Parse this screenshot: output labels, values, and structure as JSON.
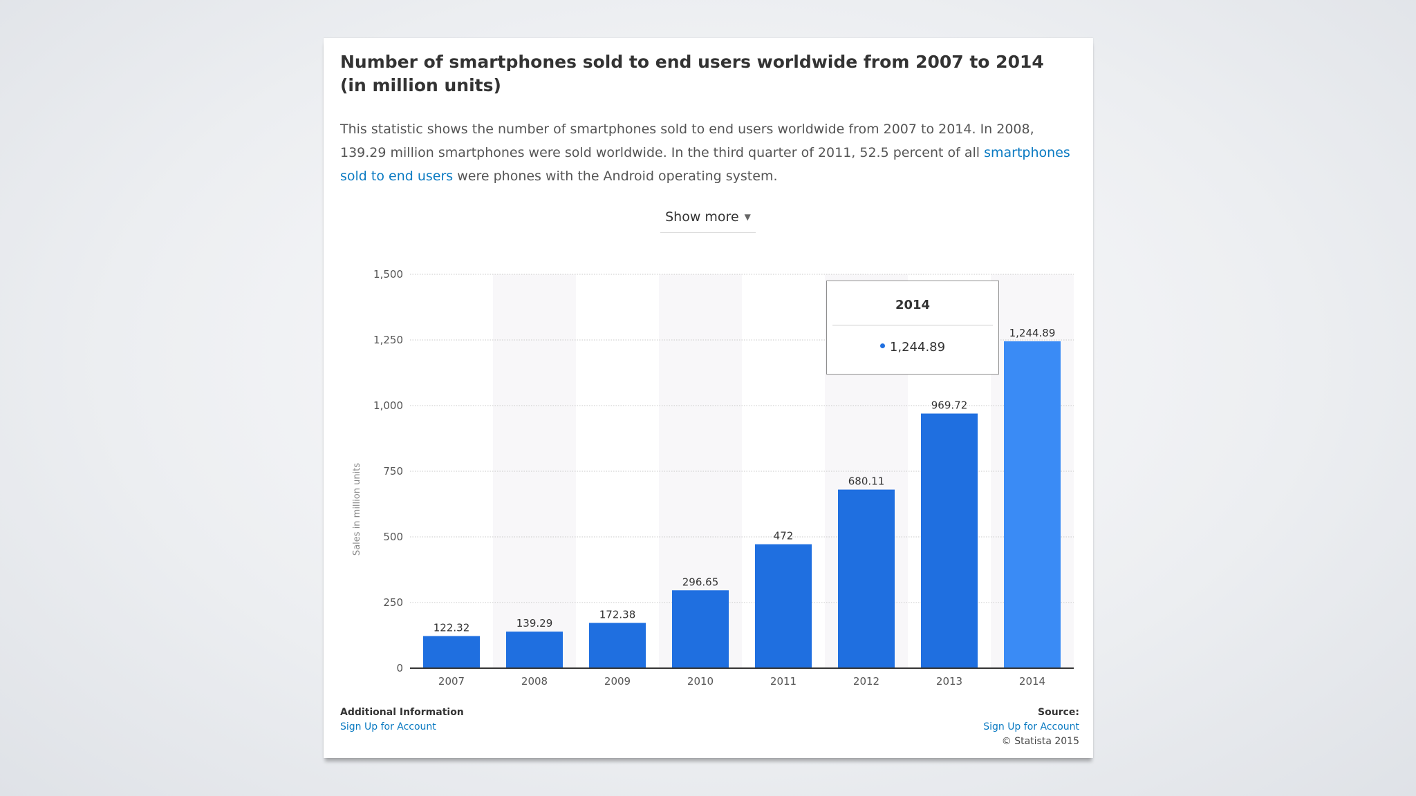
{
  "title": "Number of smartphones sold to end users worldwide from 2007 to 2014 (in million units)",
  "description": {
    "before_link": "This statistic shows the number of smartphones sold to end users worldwide from 2007 to 2014. In 2008, 139.29 million smartphones were sold worldwide. In the third quarter of 2011, 52.5 percent of all ",
    "link": "smartphones sold to end users",
    "after_link": " were phones with the Android operating system."
  },
  "show_more": {
    "label": "Show more",
    "icon": "caret-down-icon"
  },
  "chart_data": {
    "type": "bar",
    "categories": [
      "2007",
      "2008",
      "2009",
      "2010",
      "2011",
      "2012",
      "2013",
      "2014"
    ],
    "values": [
      122.32,
      139.29,
      172.38,
      296.65,
      472,
      680.11,
      969.72,
      1244.89
    ],
    "data_labels": [
      "122.32",
      "139.29",
      "172.38",
      "296.65",
      "472",
      "680.11",
      "969.72",
      "1,244.89"
    ],
    "ylabel": "Sales in million units",
    "xlabel": "",
    "ylim": [
      0,
      1500
    ],
    "yticks": [
      0,
      250,
      500,
      750,
      1000,
      1250,
      1500
    ],
    "ytick_labels": [
      "0",
      "250",
      "500",
      "750",
      "1,000",
      "1,250",
      "1,500"
    ],
    "grid": true,
    "bar_color": "#1f6fe0",
    "highlight_color": "#3a8bf5",
    "highlight_index": 7,
    "tooltip": {
      "title": "2014",
      "value": "1,244.89"
    }
  },
  "footer": {
    "left_heading": "Additional Information",
    "left_link": "Sign Up for Account",
    "right_heading": "Source:",
    "right_link": "Sign Up for Account",
    "copyright": "© Statista 2015"
  }
}
